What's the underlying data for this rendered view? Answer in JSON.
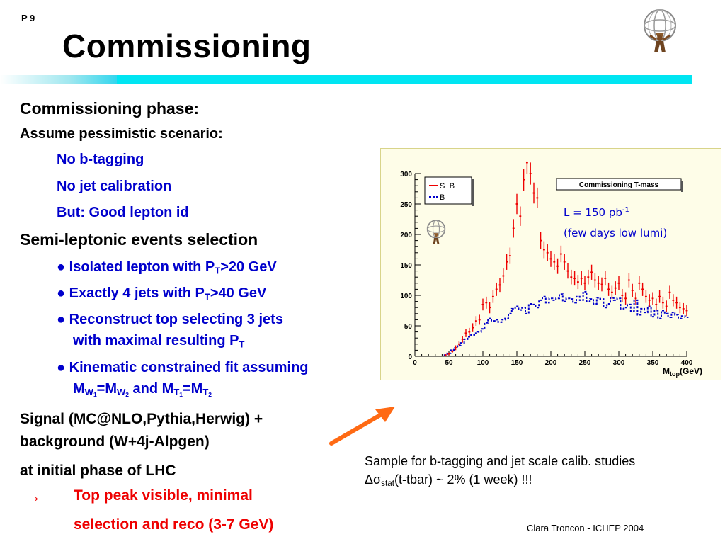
{
  "page_number": "P 9",
  "title": "Commissioning",
  "left": {
    "phase_heading": "Commissioning phase:",
    "assume": "Assume pessimistic scenario:",
    "scenario_items": [
      "No b-tagging",
      "No jet calibration",
      "But: Good lepton id"
    ],
    "selection_heading": "Semi-leptonic events selection",
    "bullet_symbol": "●",
    "bullets": {
      "b1_pre": "Isolated lepton with P",
      "b1_sub": "T",
      "b1_post": ">20 GeV",
      "b2_pre": "Exactly 4 jets with P",
      "b2_sub": "T",
      "b2_post": ">40 GeV",
      "b3_line1": "Reconstruct top selecting 3 jets",
      "b3_line2_pre": "with   maximal resulting P",
      "b3_sub": "T",
      "b4_line1": "Kinematic constrained fit assuming",
      "b4_m1": "M",
      "b4_w1": "W",
      "b4_n1": "1",
      "b4_eq1": "=M",
      "b4_w2": "W",
      "b4_n2": "2",
      "b4_and": " and M",
      "b4_t1": "T",
      "b4_n3": "1",
      "b4_eq2": "=M",
      "b4_t2": "T",
      "b4_n4": "2"
    },
    "signal_line1": "Signal (MC@NLO,Pythia,Herwig) +",
    "signal_line2": "background (W+4j-Alpgen)",
    "initial_phase": "at initial phase of LHC",
    "arrow_symbol": "→",
    "conclusion_line1": "Top peak visible, minimal",
    "conclusion_line2": "selection and reco (3-7 GeV)"
  },
  "caption": {
    "line1": "Sample for  b-tagging and jet scale calib. studies",
    "delta": "Δσ",
    "delta_sub": "stat",
    "line2_rest": "(t-tbar) ~ 2% (1 week) !!!"
  },
  "footer": "Clara Troncon - ICHEP 2004",
  "colors": {
    "bar": "#00e5f2",
    "accent_blue": "#0000cc",
    "accent_red": "#ee0000",
    "arrow": "#ff6a14",
    "plot_bg": "#fefde8"
  },
  "chart_data": {
    "type": "line",
    "title": "Commissioning T-mass",
    "xlabel": "M",
    "xlabel_sub": "top",
    "xlabel_unit": "(GeV)",
    "ylabel": "",
    "xlim": [
      0,
      400
    ],
    "ylim": [
      0,
      300
    ],
    "xticks": [
      0,
      50,
      100,
      150,
      200,
      250,
      300,
      350,
      400
    ],
    "yticks": [
      0,
      50,
      100,
      150,
      200,
      250,
      300
    ],
    "annotation_line1": "L = 150 pb",
    "annotation_sup": "-1",
    "annotation_line2": "(few days low lumi)",
    "legend_placement": "top-left",
    "series": [
      {
        "name": "S+B",
        "color": "#ee0000",
        "style": "error-bars",
        "x": [
          45,
          50,
          55,
          60,
          65,
          70,
          75,
          80,
          85,
          90,
          95,
          100,
          105,
          110,
          115,
          120,
          125,
          130,
          135,
          140,
          145,
          150,
          155,
          160,
          165,
          170,
          175,
          180,
          185,
          190,
          195,
          200,
          205,
          210,
          215,
          220,
          225,
          230,
          235,
          240,
          245,
          250,
          255,
          260,
          265,
          270,
          275,
          280,
          285,
          290,
          295,
          300,
          305,
          310,
          315,
          320,
          325,
          330,
          335,
          340,
          345,
          350,
          355,
          360,
          365,
          370,
          375,
          380,
          385,
          390,
          395,
          400
        ],
        "y": [
          2,
          4,
          8,
          14,
          20,
          28,
          38,
          40,
          47,
          58,
          60,
          85,
          88,
          80,
          98,
          110,
          117,
          132,
          155,
          165,
          210,
          250,
          230,
          290,
          318,
          300,
          268,
          260,
          190,
          175,
          170,
          160,
          155,
          148,
          168,
          155,
          140,
          130,
          128,
          122,
          128,
          120,
          130,
          138,
          125,
          120,
          118,
          128,
          110,
          105,
          112,
          120,
          100,
          95,
          125,
          108,
          95,
          120,
          110,
          98,
          92,
          95,
          85,
          98,
          88,
          82,
          105,
          92,
          88,
          80,
          78,
          75
        ]
      },
      {
        "name": "B",
        "color": "#0000cc",
        "style": "dashed-steps",
        "x": [
          45,
          50,
          55,
          60,
          65,
          70,
          75,
          80,
          85,
          90,
          95,
          100,
          105,
          110,
          115,
          120,
          125,
          130,
          135,
          140,
          145,
          150,
          155,
          160,
          165,
          170,
          175,
          180,
          185,
          190,
          195,
          200,
          205,
          210,
          215,
          220,
          225,
          230,
          235,
          240,
          245,
          250,
          255,
          260,
          265,
          270,
          275,
          280,
          285,
          290,
          295,
          300,
          305,
          310,
          315,
          320,
          325,
          330,
          335,
          340,
          345,
          350,
          355,
          360,
          365,
          370,
          375,
          380,
          385,
          390,
          395,
          400
        ],
        "y": [
          2,
          5,
          10,
          14,
          18,
          22,
          28,
          32,
          35,
          38,
          40,
          45,
          55,
          62,
          58,
          60,
          56,
          60,
          62,
          70,
          78,
          82,
          76,
          80,
          70,
          86,
          85,
          80,
          92,
          98,
          88,
          95,
          92,
          95,
          102,
          90,
          95,
          94,
          88,
          98,
          92,
          106,
          90,
          94,
          86,
          96,
          94,
          80,
          86,
          96,
          92,
          95,
          78,
          80,
          85,
          74,
          92,
          68,
          78,
          72,
          82,
          65,
          75,
          62,
          75,
          70,
          64,
          72,
          68,
          62,
          66,
          64
        ]
      }
    ]
  }
}
